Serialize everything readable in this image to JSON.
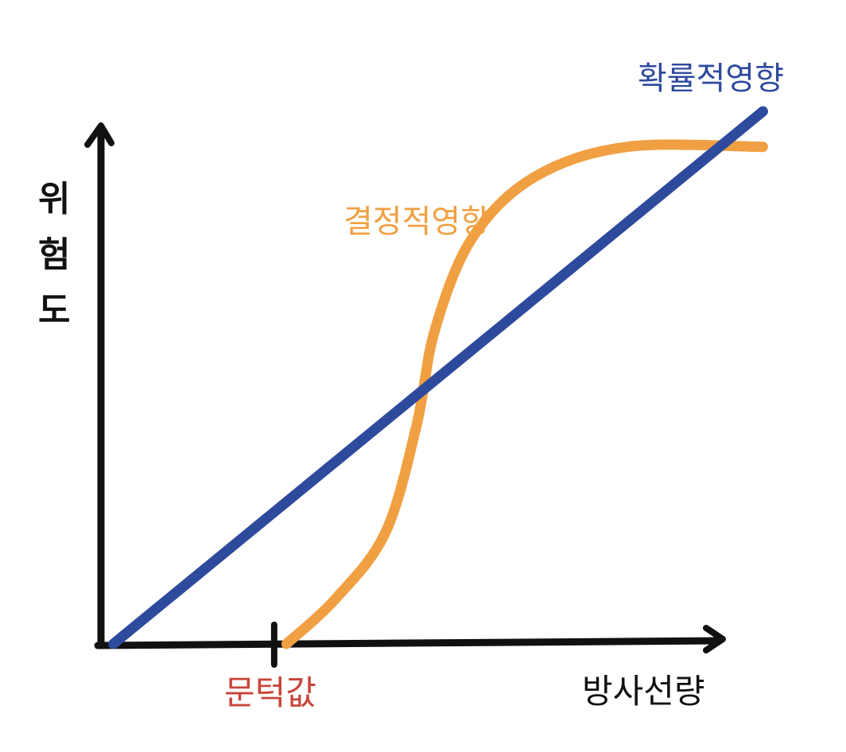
{
  "chart_data": {
    "type": "line",
    "xlabel": "방사선량",
    "ylabel": "위험도",
    "xlim": [
      0,
      1
    ],
    "ylim": [
      0,
      1
    ],
    "grid": false,
    "legend": "none",
    "threshold": {
      "label": "문턱값",
      "x": 0.28
    },
    "series": [
      {
        "name": "확률적영향",
        "color": "#2E4A9C",
        "points": [
          [
            0.02,
            0.0
          ],
          [
            1.07,
            1.05
          ]
        ]
      },
      {
        "name": "결정적영향",
        "color": "#F0A042",
        "points": [
          [
            0.3,
            0.0
          ],
          [
            0.38,
            0.09
          ],
          [
            0.46,
            0.22
          ],
          [
            0.51,
            0.43
          ],
          [
            0.54,
            0.62
          ],
          [
            0.6,
            0.8
          ],
          [
            0.7,
            0.92
          ],
          [
            0.85,
            0.98
          ],
          [
            1.07,
            0.98
          ]
        ]
      }
    ]
  }
}
